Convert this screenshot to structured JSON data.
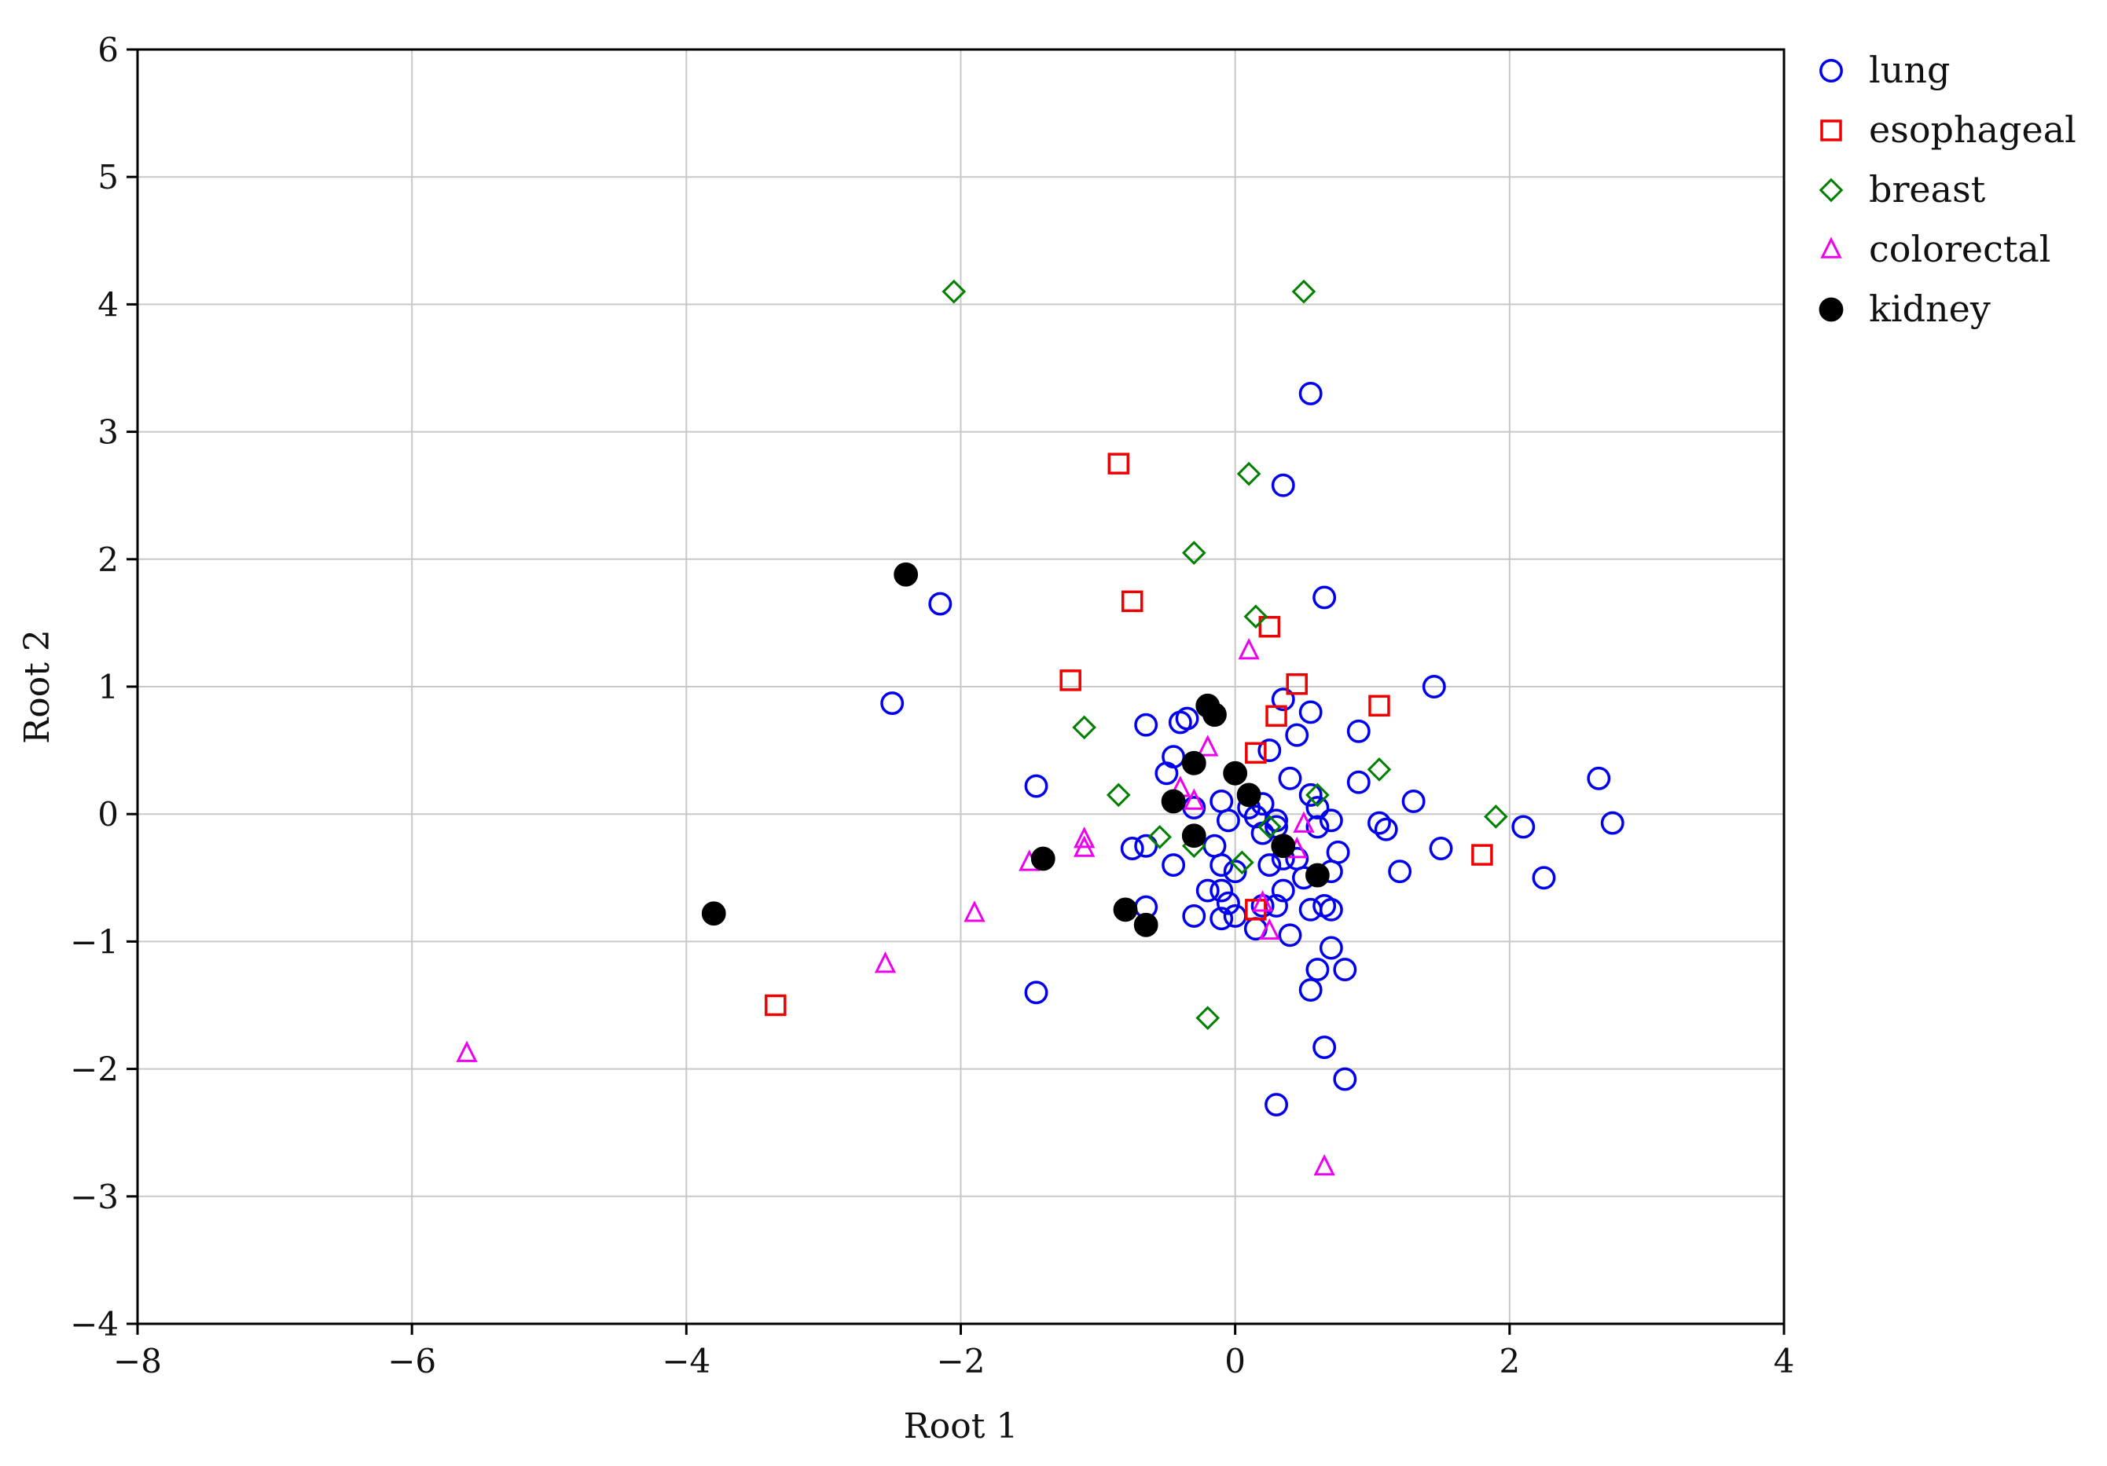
{
  "chart_data": {
    "type": "scatter",
    "xlabel": "Root 1",
    "ylabel": "Root 2",
    "xlim": [
      -8,
      4
    ],
    "ylim": [
      -4,
      6
    ],
    "x_ticks": [
      -8,
      -6,
      -4,
      -2,
      0,
      2,
      4
    ],
    "y_ticks": [
      -4,
      -3,
      -2,
      -1,
      0,
      1,
      2,
      3,
      4,
      5,
      6
    ],
    "x_tick_labels": [
      "−8",
      "−6",
      "−4",
      "−2",
      "0",
      "2",
      "4"
    ],
    "y_tick_labels": [
      "−4",
      "−3",
      "−2",
      "−1",
      "0",
      "1",
      "2",
      "3",
      "4",
      "5",
      "6"
    ],
    "grid": true,
    "legend_position": "outside-top-right",
    "series": [
      {
        "name": "lung",
        "marker": "circle-open",
        "color": "#0000ee",
        "points": [
          [
            0.55,
            3.3
          ],
          [
            0.35,
            2.58
          ],
          [
            0.65,
            1.7
          ],
          [
            -2.15,
            1.65
          ],
          [
            1.45,
            1.0
          ],
          [
            -2.5,
            0.87
          ],
          [
            0.35,
            0.9
          ],
          [
            0.55,
            0.8
          ],
          [
            -0.65,
            0.7
          ],
          [
            -0.4,
            0.72
          ],
          [
            -0.35,
            0.75
          ],
          [
            0.9,
            0.65
          ],
          [
            0.45,
            0.62
          ],
          [
            0.25,
            0.5
          ],
          [
            -0.45,
            0.45
          ],
          [
            2.65,
            0.28
          ],
          [
            -1.45,
            0.22
          ],
          [
            -0.5,
            0.32
          ],
          [
            0.4,
            0.28
          ],
          [
            0.9,
            0.25
          ],
          [
            0.55,
            0.15
          ],
          [
            0.6,
            0.05
          ],
          [
            1.3,
            0.1
          ],
          [
            0.2,
            0.08
          ],
          [
            -0.1,
            0.1
          ],
          [
            0.1,
            0.05
          ],
          [
            -0.3,
            0.05
          ],
          [
            0.7,
            -0.05
          ],
          [
            -0.05,
            -0.05
          ],
          [
            0.3,
            -0.05
          ],
          [
            0.15,
            -0.02
          ],
          [
            1.05,
            -0.07
          ],
          [
            2.75,
            -0.07
          ],
          [
            2.1,
            -0.1
          ],
          [
            1.1,
            -0.12
          ],
          [
            0.6,
            -0.1
          ],
          [
            0.3,
            -0.1
          ],
          [
            0.2,
            -0.15
          ],
          [
            -0.15,
            -0.25
          ],
          [
            -0.65,
            -0.25
          ],
          [
            -0.75,
            -0.27
          ],
          [
            1.5,
            -0.27
          ],
          [
            0.75,
            -0.3
          ],
          [
            0.45,
            -0.35
          ],
          [
            -0.1,
            -0.4
          ],
          [
            0.35,
            -0.35
          ],
          [
            0.25,
            -0.4
          ],
          [
            0.0,
            -0.45
          ],
          [
            1.2,
            -0.45
          ],
          [
            0.7,
            -0.45
          ],
          [
            2.25,
            -0.5
          ],
          [
            0.5,
            -0.5
          ],
          [
            -0.45,
            -0.4
          ],
          [
            -0.2,
            -0.6
          ],
          [
            -0.1,
            -0.6
          ],
          [
            0.35,
            -0.6
          ],
          [
            -0.05,
            -0.7
          ],
          [
            -0.65,
            -0.73
          ],
          [
            0.65,
            -0.72
          ],
          [
            0.55,
            -0.75
          ],
          [
            0.7,
            -0.75
          ],
          [
            0.2,
            -0.72
          ],
          [
            0.3,
            -0.72
          ],
          [
            -0.3,
            -0.8
          ],
          [
            -0.1,
            -0.82
          ],
          [
            0.0,
            -0.8
          ],
          [
            0.15,
            -0.9
          ],
          [
            0.4,
            -0.95
          ],
          [
            0.7,
            -1.05
          ],
          [
            0.6,
            -1.22
          ],
          [
            0.8,
            -1.22
          ],
          [
            0.55,
            -1.38
          ],
          [
            -1.45,
            -1.4
          ],
          [
            0.65,
            -1.83
          ],
          [
            0.8,
            -2.08
          ],
          [
            0.3,
            -2.28
          ]
        ]
      },
      {
        "name": "esophageal",
        "marker": "square-open",
        "color": "#ee0000",
        "points": [
          [
            -0.85,
            2.75
          ],
          [
            -0.75,
            1.67
          ],
          [
            0.25,
            1.47
          ],
          [
            -1.2,
            1.05
          ],
          [
            0.45,
            1.02
          ],
          [
            1.05,
            0.85
          ],
          [
            0.3,
            0.77
          ],
          [
            0.15,
            0.48
          ],
          [
            1.8,
            -0.32
          ],
          [
            0.15,
            -0.75
          ],
          [
            -3.35,
            -1.5
          ]
        ]
      },
      {
        "name": "breast",
        "marker": "diamond-open",
        "color": "#008000",
        "points": [
          [
            -2.05,
            4.1
          ],
          [
            0.5,
            4.1
          ],
          [
            0.1,
            2.67
          ],
          [
            -0.3,
            2.05
          ],
          [
            0.15,
            1.55
          ],
          [
            -1.1,
            0.68
          ],
          [
            1.05,
            0.35
          ],
          [
            -0.85,
            0.15
          ],
          [
            0.6,
            0.15
          ],
          [
            1.9,
            -0.02
          ],
          [
            -0.55,
            -0.18
          ],
          [
            -0.3,
            -0.25
          ],
          [
            0.25,
            -0.1
          ],
          [
            0.05,
            -0.38
          ],
          [
            -0.2,
            -1.6
          ]
        ]
      },
      {
        "name": "colorectal",
        "marker": "triangle-open",
        "color": "#ee00ee",
        "points": [
          [
            0.1,
            1.28
          ],
          [
            -0.2,
            0.52
          ],
          [
            -0.4,
            0.2
          ],
          [
            -0.3,
            0.1
          ],
          [
            0.5,
            -0.08
          ],
          [
            -1.1,
            -0.2
          ],
          [
            -1.1,
            -0.27
          ],
          [
            0.45,
            -0.28
          ],
          [
            -1.5,
            -0.38
          ],
          [
            -1.9,
            -0.78
          ],
          [
            0.2,
            -0.7
          ],
          [
            0.25,
            -0.92
          ],
          [
            -2.55,
            -1.18
          ],
          [
            -5.6,
            -1.88
          ],
          [
            0.65,
            -2.77
          ]
        ]
      },
      {
        "name": "kidney",
        "marker": "circle-filled",
        "color": "#000000",
        "points": [
          [
            -2.4,
            1.88
          ],
          [
            -0.2,
            0.85
          ],
          [
            -0.15,
            0.78
          ],
          [
            -0.3,
            0.4
          ],
          [
            0.0,
            0.32
          ],
          [
            0.1,
            0.15
          ],
          [
            -0.45,
            0.1
          ],
          [
            -0.3,
            -0.17
          ],
          [
            0.35,
            -0.25
          ],
          [
            -1.4,
            -0.35
          ],
          [
            0.6,
            -0.48
          ],
          [
            -0.8,
            -0.75
          ],
          [
            -0.65,
            -0.87
          ],
          [
            -3.8,
            -0.78
          ]
        ]
      }
    ]
  }
}
